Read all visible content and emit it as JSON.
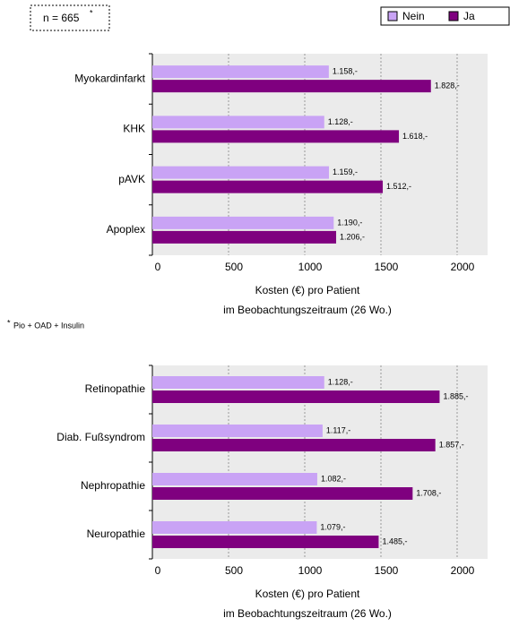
{
  "chart_data": [
    {
      "type": "bar",
      "orientation": "horizontal",
      "annotation": "n = 665",
      "annotation_mark": "*",
      "footnote_mark": "*",
      "footnote": "Pio + OAD + Insulin",
      "categories": [
        "Myokardinfarkt",
        "KHK",
        "pAVK",
        "Apoplex"
      ],
      "series": [
        {
          "name": "Nein",
          "color": "#c9a3f5",
          "values": [
            1158,
            1128,
            1159,
            1190
          ],
          "value_labels": [
            "1.158,-",
            "1.128,-",
            "1.159,-",
            "1.190,-"
          ]
        },
        {
          "name": "Ja",
          "color": "#7f007f",
          "values": [
            1828,
            1618,
            1512,
            1206
          ],
          "value_labels": [
            "1.828,-",
            "1.618,-",
            "1.512,-",
            "1.206,-"
          ]
        }
      ],
      "xlim": [
        0,
        2200
      ],
      "xticks": [
        0,
        500,
        1000,
        1500,
        2000
      ],
      "grid": true,
      "xlabel": [
        "Kosten (€) pro Patient",
        "im Beobachtungszeitraum (26 Wo.)"
      ],
      "legend": "top-right"
    },
    {
      "type": "bar",
      "orientation": "horizontal",
      "categories": [
        "Retinopathie",
        "Diab. Fußsyndrom",
        "Nephropathie",
        "Neuropathie"
      ],
      "series": [
        {
          "name": "Nein",
          "color": "#c9a3f5",
          "values": [
            1128,
            1117,
            1082,
            1079
          ],
          "value_labels": [
            "1.128,-",
            "1.117,-",
            "1.082,-",
            "1.079,-"
          ]
        },
        {
          "name": "Ja",
          "color": "#7f007f",
          "values": [
            1885,
            1857,
            1708,
            1485
          ],
          "value_labels": [
            "1.885,-",
            "1.857,-",
            "1.708,-",
            "1.485,-"
          ]
        }
      ],
      "xlim": [
        0,
        2200
      ],
      "xticks": [
        0,
        500,
        1000,
        1500,
        2000
      ],
      "grid": true,
      "xlabel": [
        "Kosten (€) pro Patient",
        "im Beobachtungszeitraum (26 Wo.)"
      ]
    }
  ]
}
